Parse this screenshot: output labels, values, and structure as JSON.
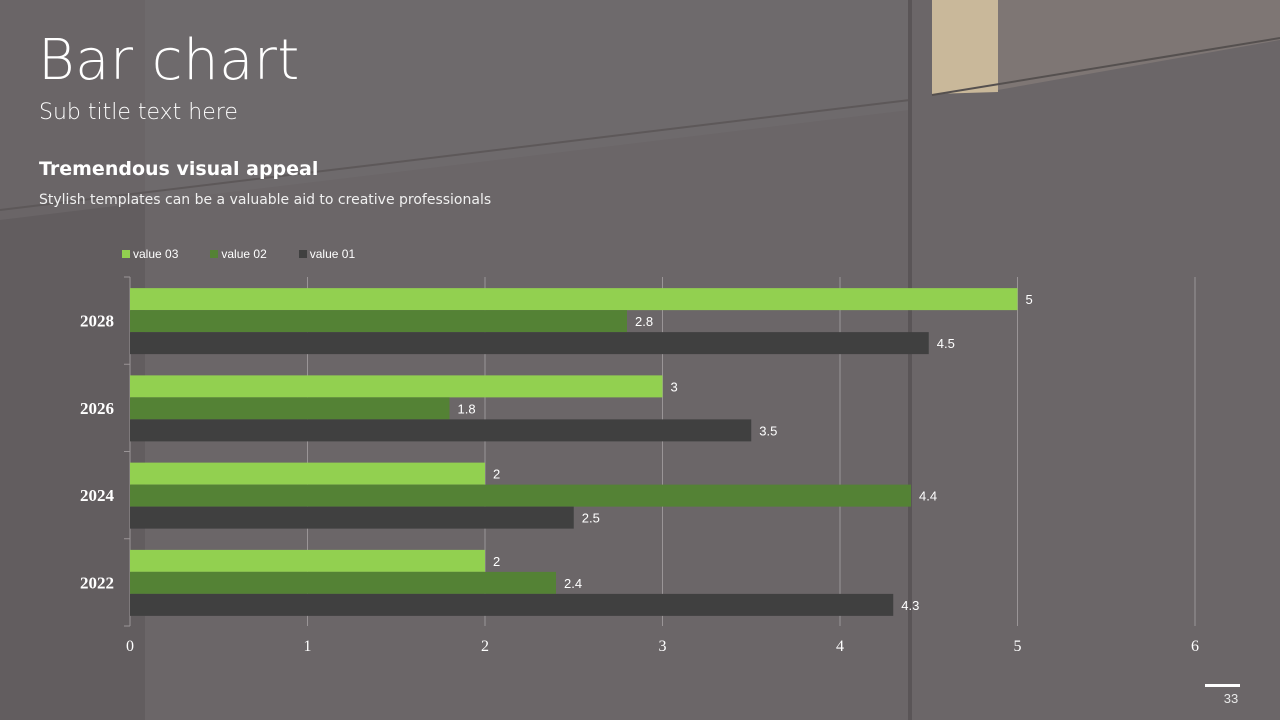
{
  "slide": {
    "title": "Bar chart",
    "subtitle": "Sub title text here",
    "heading": "Tremendous visual appeal",
    "body": "Stylish templates can be a valuable aid to creative professionals",
    "page_number": "33"
  },
  "colors": {
    "background": "#6b6668",
    "value03": "#92d050",
    "value02": "#548235",
    "value01": "#404040",
    "grid": "#9a9597"
  },
  "chart_data": {
    "type": "bar",
    "orientation": "horizontal",
    "categories": [
      "2028",
      "2026",
      "2024",
      "2022"
    ],
    "series": [
      {
        "name": "value 03",
        "color": "#92d050",
        "values": [
          5,
          3,
          2,
          2
        ]
      },
      {
        "name": "value 02",
        "color": "#548235",
        "values": [
          2.8,
          1.8,
          4.4,
          2.4
        ]
      },
      {
        "name": "value 01",
        "color": "#404040",
        "values": [
          4.5,
          3.5,
          2.5,
          4.3
        ]
      }
    ],
    "xlim": [
      0,
      6
    ],
    "xticks": [
      "0",
      "1",
      "2",
      "3",
      "4",
      "5",
      "6"
    ],
    "grid": true,
    "legend": "top-left",
    "data_labels": true
  }
}
